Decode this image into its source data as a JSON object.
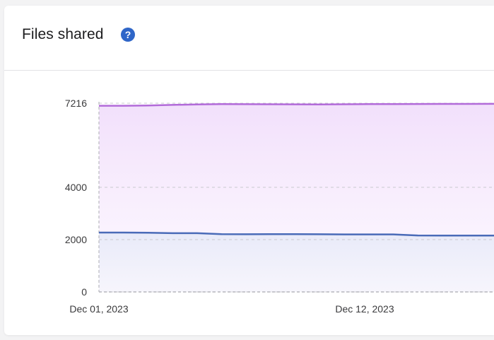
{
  "card": {
    "title": "Files shared",
    "help_icon": "question-circle-icon",
    "help_symbol": "?"
  },
  "colors": {
    "purple_series": "#b26bd9",
    "blue_series": "#4a6bb8",
    "grid": "#c9c9cf",
    "purple_fill": "#f3e2fb",
    "blue_fill": "#e8ebf8"
  },
  "chart_data": {
    "type": "area",
    "xlabel": "",
    "ylabel": "",
    "x_ticks": [
      "Dec 01, 2023",
      "Dec 12, 2023"
    ],
    "y_ticks": [
      0,
      2000,
      4000,
      7216
    ],
    "ylim": [
      0,
      7216
    ],
    "grid": true,
    "x": [
      1,
      2,
      3,
      4,
      5,
      6,
      7,
      8,
      9,
      10,
      11,
      12,
      13,
      14,
      15,
      16,
      17,
      18
    ],
    "series": [
      {
        "values": [
          7120,
          7120,
          7130,
          7150,
          7170,
          7180,
          7178,
          7175,
          7172,
          7170,
          7175,
          7180,
          7183,
          7185,
          7188,
          7190,
          7193,
          7196
        ]
      },
      {
        "values": [
          2270,
          2270,
          2265,
          2245,
          2245,
          2210,
          2205,
          2210,
          2210,
          2205,
          2200,
          2200,
          2200,
          2160,
          2155,
          2155,
          2155,
          2160
        ]
      }
    ]
  }
}
